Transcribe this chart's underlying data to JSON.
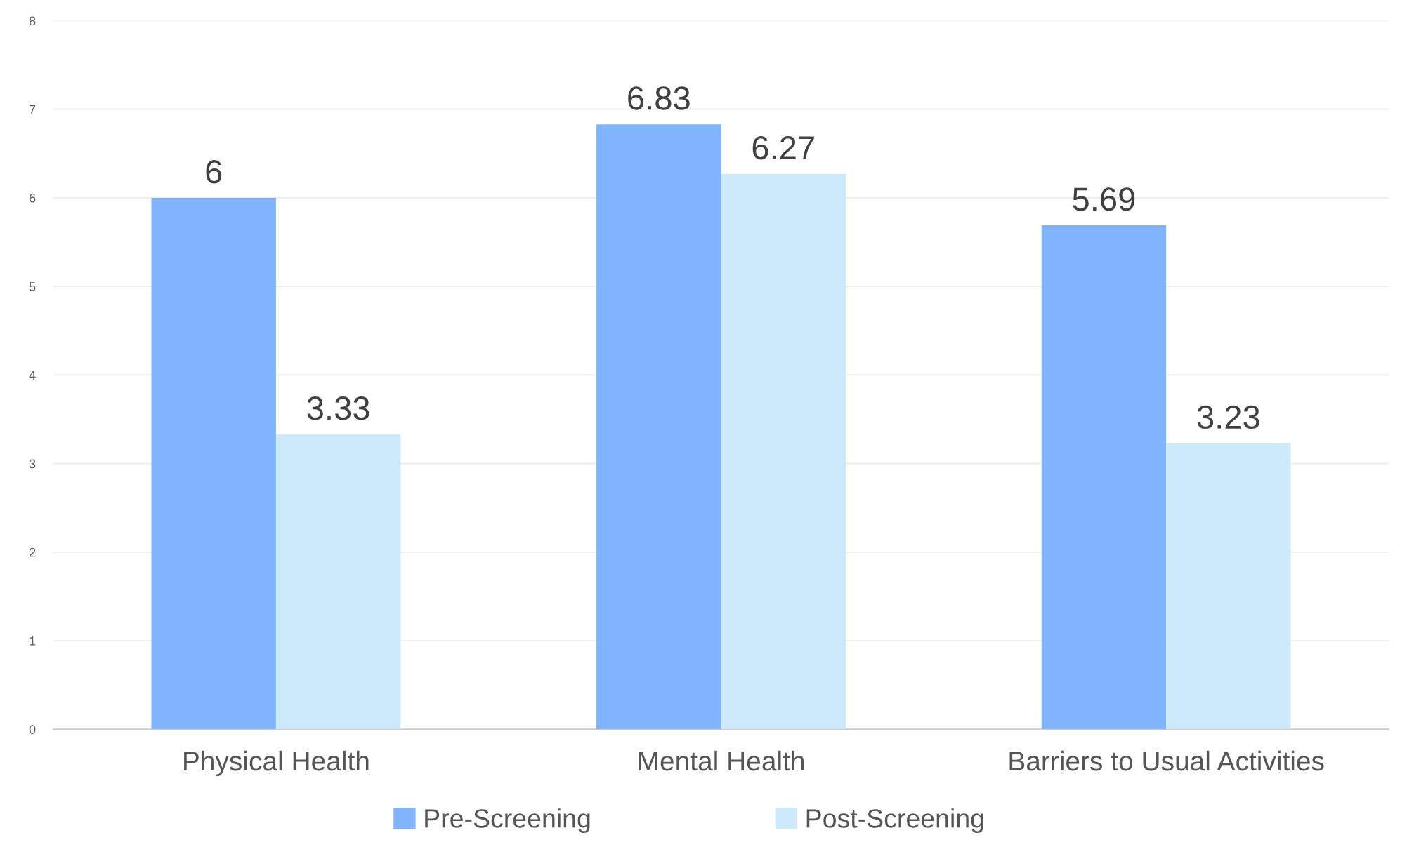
{
  "chart_data": {
    "type": "bar",
    "categories": [
      "Physical Health",
      "Mental Health",
      "Barriers to Usual Activities"
    ],
    "series": [
      {
        "name": "Pre-Screening",
        "color": "#80b4ff",
        "values": [
          6,
          6.83,
          5.69
        ]
      },
      {
        "name": "Post-Screening",
        "color": "#cdeafd",
        "values": [
          3.33,
          6.27,
          3.23
        ]
      }
    ],
    "ylim": [
      0,
      8
    ],
    "yticks": [
      0,
      1,
      2,
      3,
      4,
      5,
      6,
      7,
      8
    ],
    "grid": "y",
    "legend": "bottom",
    "data_labels": true
  }
}
